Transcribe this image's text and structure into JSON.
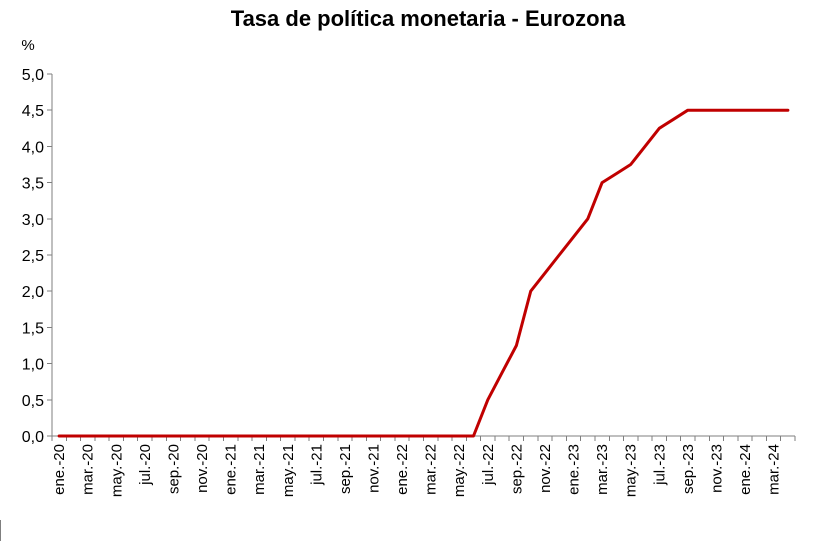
{
  "chart_data": {
    "type": "line",
    "title": "Tasa de política monetaria - Eurozona",
    "unit_label": "%",
    "ylim": [
      0,
      5
    ],
    "yticks": [
      "0,0",
      "0,5",
      "1,0",
      "1,5",
      "2,0",
      "2,5",
      "3,0",
      "3,5",
      "4,0",
      "4,5",
      "5,0"
    ],
    "ytick_values": [
      0,
      0.5,
      1,
      1.5,
      2,
      2.5,
      3,
      3.5,
      4,
      4.5,
      5
    ],
    "grid": false,
    "xtick_labels": [
      "ene.-20",
      "mar.-20",
      "may.-20",
      "jul.-20",
      "sep.-20",
      "nov.-20",
      "ene.-21",
      "mar.-21",
      "may.-21",
      "jul.-21",
      "sep.-21",
      "nov.-21",
      "ene.-22",
      "mar.-22",
      "may.-22",
      "jul.-22",
      "sep.-22",
      "nov.-22",
      "ene.-23",
      "mar.-23",
      "may.-23",
      "jul.-23",
      "sep.-23",
      "nov.-23",
      "ene.-24",
      "mar.-24"
    ],
    "x": [
      "2020-01",
      "2020-02",
      "2020-03",
      "2020-04",
      "2020-05",
      "2020-06",
      "2020-07",
      "2020-08",
      "2020-09",
      "2020-10",
      "2020-11",
      "2020-12",
      "2021-01",
      "2021-02",
      "2021-03",
      "2021-04",
      "2021-05",
      "2021-06",
      "2021-07",
      "2021-08",
      "2021-09",
      "2021-10",
      "2021-11",
      "2021-12",
      "2022-01",
      "2022-02",
      "2022-03",
      "2022-04",
      "2022-05",
      "2022-06",
      "2022-07",
      "2022-08",
      "2022-09",
      "2022-10",
      "2022-11",
      "2022-12",
      "2023-01",
      "2023-02",
      "2023-03",
      "2023-04",
      "2023-05",
      "2023-06",
      "2023-07",
      "2023-08",
      "2023-09",
      "2023-10",
      "2023-11",
      "2023-12",
      "2024-01",
      "2024-02",
      "2024-03",
      "2024-04"
    ],
    "series": [
      {
        "color": "#c00000",
        "values": [
          0,
          0,
          0,
          0,
          0,
          0,
          0,
          0,
          0,
          0,
          0,
          0,
          0,
          0,
          0,
          0,
          0,
          0,
          0,
          0,
          0,
          0,
          0,
          0,
          0,
          0,
          0,
          0,
          0,
          0,
          0.5,
          0.875,
          1.25,
          2.0,
          2.25,
          2.5,
          2.75,
          3.0,
          3.5,
          3.625,
          3.75,
          4.0,
          4.25,
          4.375,
          4.5,
          4.5,
          4.5,
          4.5,
          4.5,
          4.5,
          4.5,
          4.5
        ]
      }
    ]
  }
}
